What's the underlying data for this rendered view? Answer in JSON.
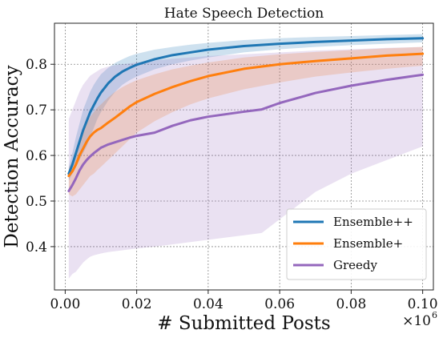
{
  "chart_data": {
    "type": "line",
    "title": "Hate Speech Detection",
    "xlabel": "# Submitted Posts",
    "ylabel": "Detection Accuracy",
    "x_offset_label": "×10",
    "x_offset_exponent": "6",
    "xlim": [
      -0.003,
      0.103
    ],
    "ylim": [
      0.305,
      0.89
    ],
    "x_ticks": [
      0.0,
      0.02,
      0.04,
      0.06,
      0.08,
      0.1
    ],
    "x_tick_labels": [
      "0.00",
      "0.02",
      "0.04",
      "0.06",
      "0.08",
      "0.10"
    ],
    "y_ticks": [
      0.4,
      0.5,
      0.6,
      0.7,
      0.8
    ],
    "y_tick_labels": [
      "0.4",
      "0.5",
      "0.6",
      "0.7",
      "0.8"
    ],
    "grid": true,
    "legend_position": "lower-right",
    "series": [
      {
        "name": "Ensemble++",
        "color": "#1f77b4",
        "x": [
          0.001,
          0.002,
          0.003,
          0.004,
          0.005,
          0.006,
          0.007,
          0.008,
          0.009,
          0.01,
          0.012,
          0.014,
          0.016,
          0.018,
          0.02,
          0.025,
          0.03,
          0.035,
          0.04,
          0.05,
          0.06,
          0.07,
          0.08,
          0.09,
          0.1
        ],
        "y": [
          0.56,
          0.58,
          0.605,
          0.63,
          0.655,
          0.675,
          0.695,
          0.71,
          0.725,
          0.738,
          0.758,
          0.773,
          0.784,
          0.792,
          0.799,
          0.811,
          0.82,
          0.826,
          0.832,
          0.84,
          0.845,
          0.849,
          0.852,
          0.855,
          0.857
        ],
        "upper": [
          0.575,
          0.605,
          0.64,
          0.67,
          0.7,
          0.72,
          0.74,
          0.755,
          0.767,
          0.778,
          0.792,
          0.803,
          0.811,
          0.818,
          0.823,
          0.832,
          0.838,
          0.843,
          0.847,
          0.853,
          0.857,
          0.86,
          0.862,
          0.864,
          0.866
        ],
        "lower": [
          0.545,
          0.56,
          0.575,
          0.59,
          0.605,
          0.62,
          0.64,
          0.66,
          0.68,
          0.695,
          0.72,
          0.74,
          0.755,
          0.765,
          0.773,
          0.789,
          0.8,
          0.808,
          0.815,
          0.826,
          0.833,
          0.838,
          0.842,
          0.845,
          0.848
        ]
      },
      {
        "name": "Ensemble+",
        "color": "#ff7f0e",
        "x": [
          0.001,
          0.002,
          0.003,
          0.004,
          0.005,
          0.006,
          0.007,
          0.008,
          0.009,
          0.01,
          0.012,
          0.014,
          0.016,
          0.018,
          0.02,
          0.025,
          0.03,
          0.035,
          0.04,
          0.05,
          0.06,
          0.07,
          0.08,
          0.09,
          0.1
        ],
        "y": [
          0.555,
          0.565,
          0.58,
          0.6,
          0.615,
          0.63,
          0.642,
          0.65,
          0.656,
          0.66,
          0.672,
          0.683,
          0.695,
          0.707,
          0.717,
          0.735,
          0.75,
          0.763,
          0.774,
          0.79,
          0.8,
          0.807,
          0.813,
          0.819,
          0.823
        ],
        "upper": [
          0.57,
          0.59,
          0.61,
          0.635,
          0.655,
          0.67,
          0.685,
          0.695,
          0.705,
          0.712,
          0.727,
          0.74,
          0.75,
          0.758,
          0.765,
          0.778,
          0.789,
          0.797,
          0.804,
          0.815,
          0.822,
          0.827,
          0.831,
          0.835,
          0.838
        ],
        "lower": [
          0.515,
          0.51,
          0.515,
          0.525,
          0.535,
          0.545,
          0.555,
          0.56,
          0.568,
          0.575,
          0.59,
          0.605,
          0.62,
          0.635,
          0.65,
          0.675,
          0.695,
          0.712,
          0.725,
          0.745,
          0.76,
          0.773,
          0.782,
          0.79,
          0.797
        ]
      },
      {
        "name": "Greedy",
        "color": "#9467bd",
        "x": [
          0.001,
          0.002,
          0.003,
          0.004,
          0.005,
          0.006,
          0.007,
          0.008,
          0.009,
          0.01,
          0.012,
          0.014,
          0.016,
          0.018,
          0.02,
          0.025,
          0.03,
          0.035,
          0.04,
          0.05,
          0.055,
          0.06,
          0.07,
          0.08,
          0.09,
          0.1
        ],
        "y": [
          0.522,
          0.535,
          0.55,
          0.567,
          0.58,
          0.59,
          0.598,
          0.605,
          0.611,
          0.617,
          0.624,
          0.629,
          0.634,
          0.639,
          0.643,
          0.65,
          0.665,
          0.677,
          0.685,
          0.696,
          0.701,
          0.715,
          0.737,
          0.753,
          0.766,
          0.777
        ],
        "upper": [
          0.68,
          0.7,
          0.72,
          0.74,
          0.755,
          0.765,
          0.775,
          0.78,
          0.785,
          0.79,
          0.795,
          0.798,
          0.8,
          0.802,
          0.804,
          0.808,
          0.812,
          0.815,
          0.818,
          0.822,
          0.824,
          0.826,
          0.83,
          0.833,
          0.836,
          0.838
        ],
        "lower": [
          0.33,
          0.34,
          0.345,
          0.355,
          0.365,
          0.372,
          0.378,
          0.381,
          0.383,
          0.385,
          0.388,
          0.39,
          0.392,
          0.394,
          0.396,
          0.4,
          0.405,
          0.41,
          0.415,
          0.425,
          0.43,
          0.46,
          0.52,
          0.56,
          0.59,
          0.62
        ]
      }
    ]
  }
}
